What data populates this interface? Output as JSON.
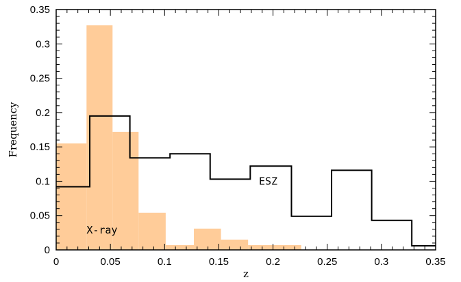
{
  "chart_data": {
    "type": "bar",
    "xlabel": "z",
    "ylabel": "Frequency",
    "xlim": [
      0,
      0.35
    ],
    "ylim": [
      0,
      0.35
    ],
    "xticks": [
      "0",
      "0.05",
      "0.1",
      "0.15",
      "0.2",
      "0.25",
      "0.3",
      "0.35"
    ],
    "yticks": [
      "0",
      "0.05",
      "0.1",
      "0.15",
      "0.2",
      "0.25",
      "0.3",
      "0.35"
    ],
    "grid": false,
    "series": [
      {
        "style": "filled-histogram",
        "color": "#ffcc99",
        "bins": [
          {
            "x0": 0.0,
            "x1": 0.028,
            "y": 0.155
          },
          {
            "x0": 0.028,
            "x1": 0.052,
            "y": 0.327
          },
          {
            "x0": 0.052,
            "x1": 0.076,
            "y": 0.172
          },
          {
            "x0": 0.076,
            "x1": 0.101,
            "y": 0.054
          },
          {
            "x0": 0.101,
            "x1": 0.127,
            "y": 0.007
          },
          {
            "x0": 0.127,
            "x1": 0.152,
            "y": 0.031
          },
          {
            "x0": 0.152,
            "x1": 0.177,
            "y": 0.015
          },
          {
            "x0": 0.177,
            "x1": 0.226,
            "y": 0.007
          }
        ]
      },
      {
        "style": "step-histogram",
        "color": "#000000",
        "bins": [
          {
            "x0": 0.0,
            "x1": 0.031,
            "y": 0.092
          },
          {
            "x0": 0.031,
            "x1": 0.068,
            "y": 0.195
          },
          {
            "x0": 0.068,
            "x1": 0.105,
            "y": 0.134
          },
          {
            "x0": 0.105,
            "x1": 0.142,
            "y": 0.14
          },
          {
            "x0": 0.142,
            "x1": 0.179,
            "y": 0.103
          },
          {
            "x0": 0.179,
            "x1": 0.217,
            "y": 0.122
          },
          {
            "x0": 0.217,
            "x1": 0.254,
            "y": 0.049
          },
          {
            "x0": 0.254,
            "x1": 0.291,
            "y": 0.116
          },
          {
            "x0": 0.291,
            "x1": 0.328,
            "y": 0.043
          },
          {
            "x0": 0.328,
            "x1": 0.35,
            "y": 0.006
          }
        ]
      }
    ],
    "annotations": [
      {
        "text": "X-ray",
        "x": 0.028,
        "y": 0.024
      },
      {
        "text": "ESZ",
        "x": 0.187,
        "y": 0.095
      }
    ]
  }
}
